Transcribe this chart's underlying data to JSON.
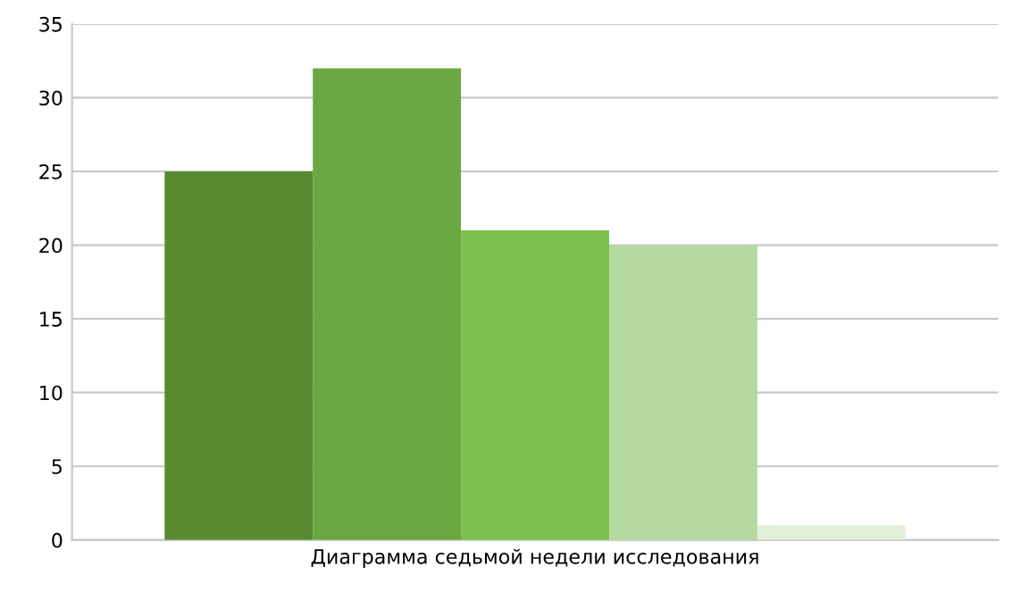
{
  "chart_data": {
    "type": "bar",
    "categories": [
      "Диаграмма седьмой недели исследования"
    ],
    "series": [
      {
        "color": "#5a8a30",
        "values": [
          25
        ]
      },
      {
        "color": "#6aa842",
        "values": [
          32
        ]
      },
      {
        "color": "#7bbf4f",
        "values": [
          21
        ]
      },
      {
        "color": "#b5d9a0",
        "values": [
          20
        ]
      },
      {
        "color": "#e2f0d9",
        "values": [
          1
        ]
      }
    ],
    "ylim": [
      0,
      35
    ],
    "yticks": [
      0,
      5,
      10,
      15,
      20,
      25,
      30,
      35
    ],
    "grid": "y",
    "legend": false
  }
}
